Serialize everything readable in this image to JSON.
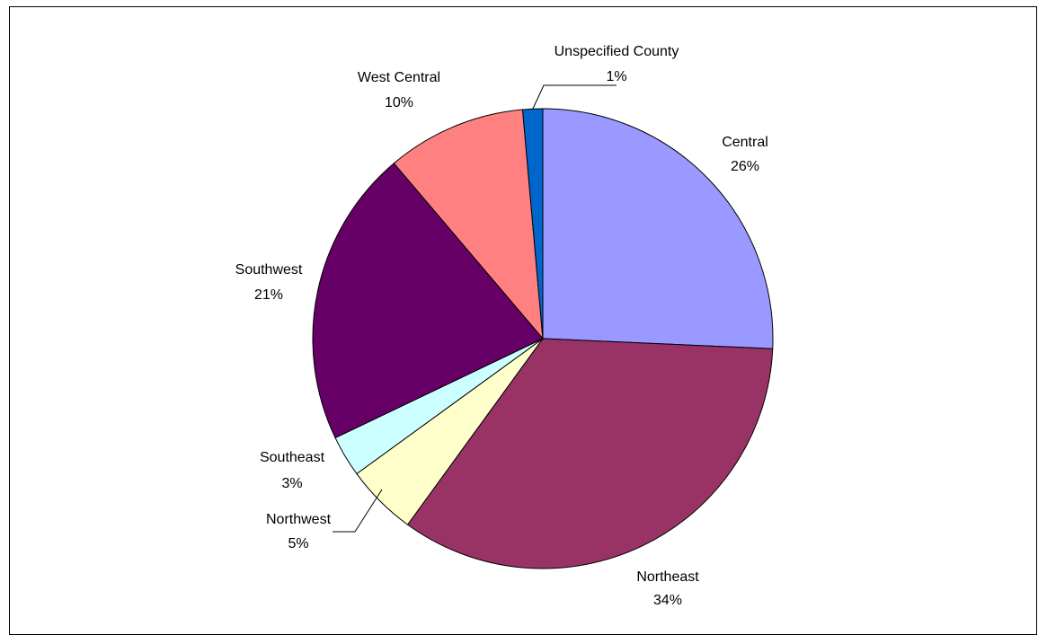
{
  "chart_data": {
    "type": "pie",
    "title": "",
    "slices": [
      {
        "label": "Central",
        "pct_text": "26%",
        "value": 25.7,
        "color": "#9999FF"
      },
      {
        "label": "Northeast",
        "pct_text": "34%",
        "value": 34.3,
        "color": "#993366"
      },
      {
        "label": "Northwest",
        "pct_text": "5%",
        "value": 5.0,
        "color": "#FFFFCC"
      },
      {
        "label": "Southeast",
        "pct_text": "3%",
        "value": 2.9,
        "color": "#CCFFFF"
      },
      {
        "label": "Southwest",
        "pct_text": "21%",
        "value": 20.9,
        "color": "#660066"
      },
      {
        "label": "West Central",
        "pct_text": "10%",
        "value": 9.8,
        "color": "#FF8080"
      },
      {
        "label": "Unspecified County",
        "pct_text": "1%",
        "value": 1.4,
        "color": "#0066CC"
      }
    ],
    "data_labels": "category name and percentage",
    "legend": "none"
  }
}
